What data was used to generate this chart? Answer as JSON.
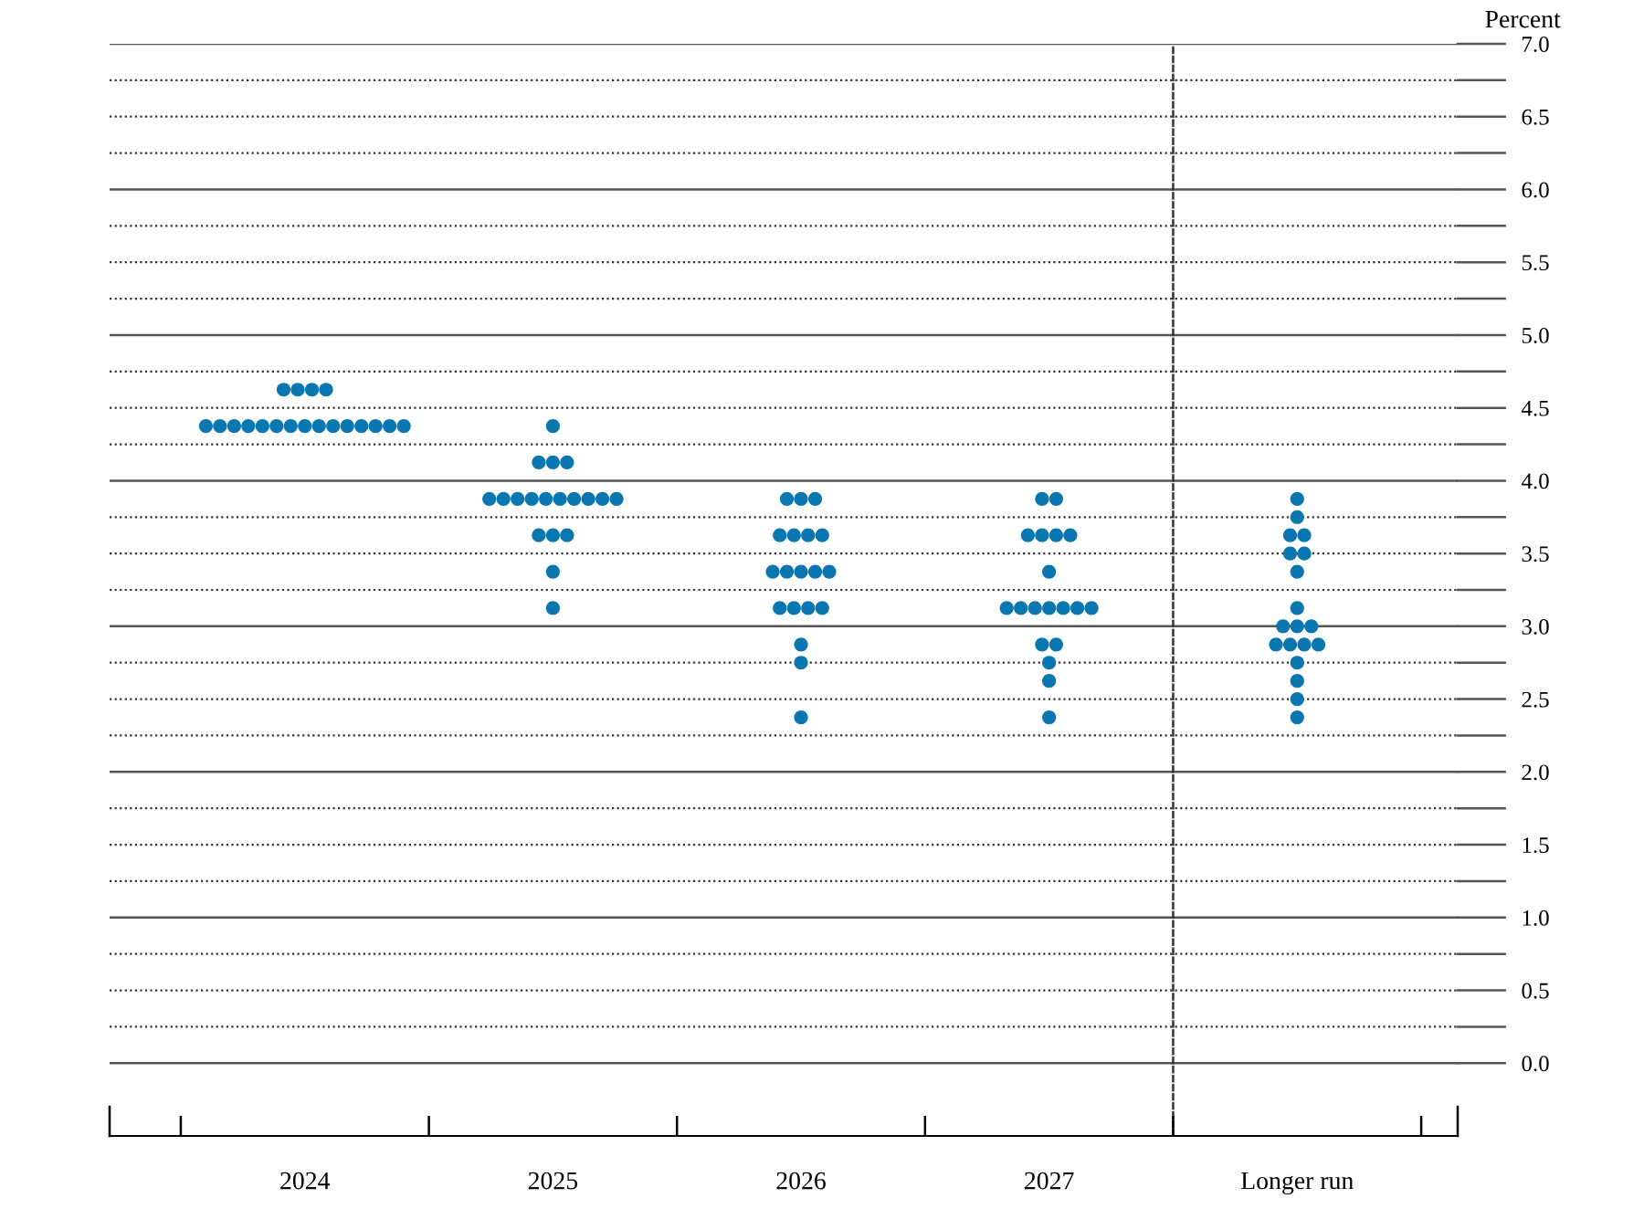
{
  "chart_data": {
    "type": "scatter",
    "categories": [
      "2024",
      "2025",
      "2026",
      "2027",
      "Longer run"
    ],
    "ylabel": "Percent",
    "ylim": [
      -0.5,
      7.0
    ],
    "yticks": [
      {
        "value": 0,
        "label": "0.0"
      },
      {
        "value": 0.25,
        "label": null
      },
      {
        "value": 0.5,
        "label": "0.5"
      },
      {
        "value": 0.75,
        "label": null
      },
      {
        "value": 1,
        "label": "1.0"
      },
      {
        "value": 1.25,
        "label": null
      },
      {
        "value": 1.5,
        "label": "1.5"
      },
      {
        "value": 1.75,
        "label": null
      },
      {
        "value": 2,
        "label": "2.0"
      },
      {
        "value": 2.25,
        "label": null
      },
      {
        "value": 2.5,
        "label": "2.5"
      },
      {
        "value": 2.75,
        "label": null
      },
      {
        "value": 3,
        "label": "3.0"
      },
      {
        "value": 3.25,
        "label": null
      },
      {
        "value": 3.5,
        "label": "3.5"
      },
      {
        "value": 3.75,
        "label": null
      },
      {
        "value": 4,
        "label": "4.0"
      },
      {
        "value": 4.25,
        "label": null
      },
      {
        "value": 4.5,
        "label": "4.5"
      },
      {
        "value": 4.75,
        "label": null
      },
      {
        "value": 5,
        "label": "5.0"
      },
      {
        "value": 5.25,
        "label": null
      },
      {
        "value": 5.5,
        "label": "5.5"
      },
      {
        "value": 5.75,
        "label": null
      },
      {
        "value": 6,
        "label": "6.0"
      },
      {
        "value": 6.25,
        "label": null
      },
      {
        "value": 6.5,
        "label": "6.5"
      },
      {
        "value": 6.75,
        "label": null
      },
      {
        "value": 7,
        "label": "7.0"
      }
    ],
    "grid": "y",
    "marker": "circle",
    "series": [
      {
        "color": "#0a77b0",
        "values": [
          4.625,
          4.375,
          3.875,
          3.875,
          3.875
        ]
      },
      {
        "color": "#0a77b0",
        "values": [
          4.625,
          4.125,
          3.875,
          3.875,
          3.75
        ]
      },
      {
        "color": "#0a77b0",
        "values": [
          4.625,
          4.125,
          3.875,
          3.625,
          3.625
        ]
      },
      {
        "color": "#0a77b0",
        "values": [
          4.625,
          4.125,
          3.625,
          3.625,
          3.625
        ]
      },
      {
        "color": "#0a77b0",
        "values": [
          4.375,
          3.875,
          3.625,
          3.625,
          3.5
        ]
      },
      {
        "color": "#0a77b0",
        "values": [
          4.375,
          3.875,
          3.625,
          3.625,
          3.5
        ]
      },
      {
        "color": "#0a77b0",
        "values": [
          4.375,
          3.875,
          3.625,
          3.375,
          3.375
        ]
      },
      {
        "color": "#0a77b0",
        "values": [
          4.375,
          3.875,
          3.375,
          3.125,
          3.125
        ]
      },
      {
        "color": "#0a77b0",
        "values": [
          4.375,
          3.875,
          3.375,
          3.125,
          3.0
        ]
      },
      {
        "color": "#0a77b0",
        "values": [
          4.375,
          3.875,
          3.375,
          3.125,
          3.0
        ]
      },
      {
        "color": "#0a77b0",
        "values": [
          4.375,
          3.875,
          3.375,
          3.125,
          3.0
        ]
      },
      {
        "color": "#0a77b0",
        "values": [
          4.375,
          3.875,
          3.375,
          3.125,
          2.875
        ]
      },
      {
        "color": "#0a77b0",
        "values": [
          4.375,
          3.875,
          3.125,
          3.125,
          2.875
        ]
      },
      {
        "color": "#0a77b0",
        "values": [
          4.375,
          3.875,
          3.125,
          3.125,
          2.875
        ]
      },
      {
        "color": "#0a77b0",
        "values": [
          4.375,
          3.625,
          3.125,
          2.875,
          2.875
        ]
      },
      {
        "color": "#0a77b0",
        "values": [
          4.375,
          3.625,
          3.125,
          2.875,
          2.75
        ]
      },
      {
        "color": "#0a77b0",
        "values": [
          4.375,
          3.625,
          2.875,
          2.75,
          2.625
        ]
      },
      {
        "color": "#0a77b0",
        "values": [
          4.375,
          3.375,
          2.75,
          2.625,
          2.5
        ]
      },
      {
        "color": "#0a77b0",
        "values": [
          4.375,
          3.125,
          2.375,
          2.375,
          2.375
        ]
      }
    ]
  }
}
